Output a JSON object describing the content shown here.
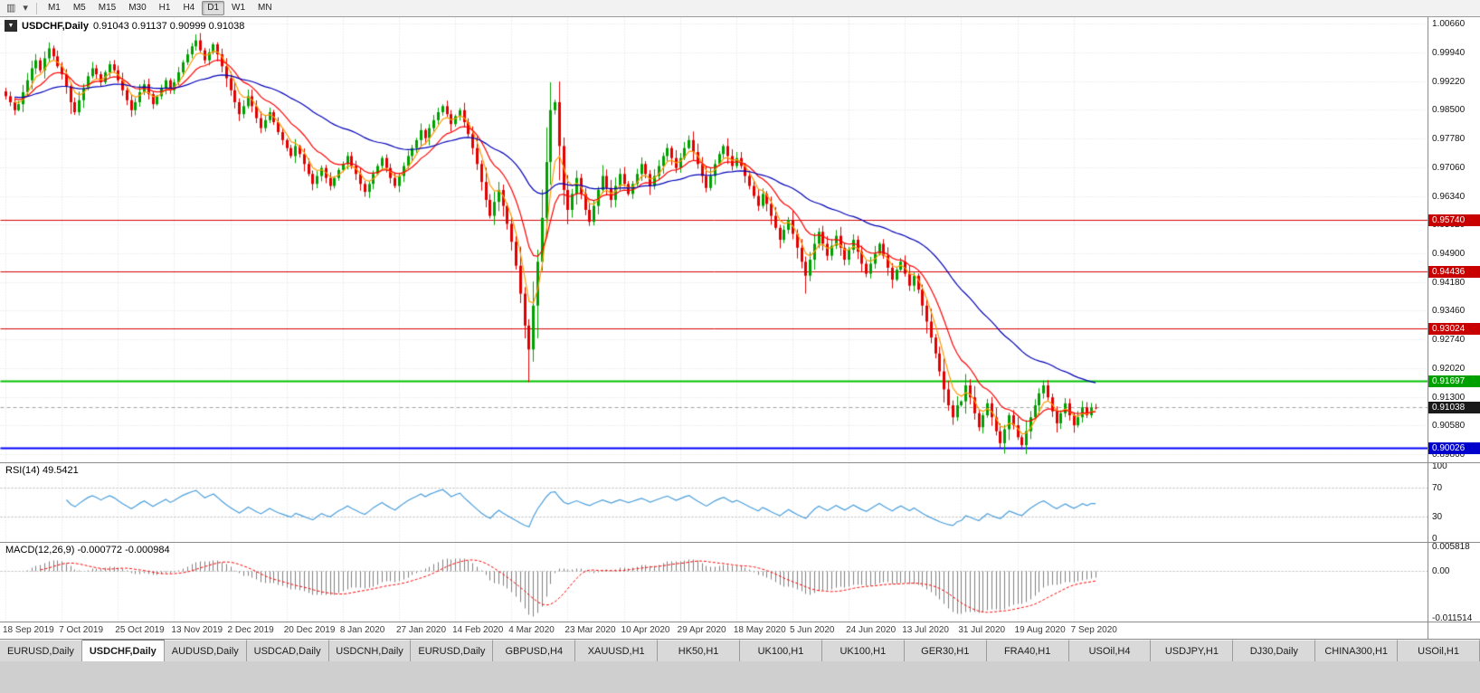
{
  "toolbar": {
    "icons": {
      "chart_tool": "▥",
      "dropdown": "▾"
    },
    "timeframes": [
      "M1",
      "M5",
      "M15",
      "M30",
      "H1",
      "H4",
      "D1",
      "W1",
      "MN"
    ],
    "active_timeframe": "D1"
  },
  "chart": {
    "menu_icon": "▼",
    "title": "USDCHF,Daily",
    "ohlc": "0.91043 0.91137 0.90999 0.91038"
  },
  "rsi": {
    "label": "RSI(14) 49.5421"
  },
  "macd": {
    "label": "MACD(12,26,9) -0.000772 -0.000984"
  },
  "tabs": {
    "active_index": 1,
    "items": [
      "EURUSD,Daily",
      "USDCHF,Daily",
      "AUDUSD,Daily",
      "USDCAD,Daily",
      "USDCNH,Daily",
      "EURUSD,Daily",
      "GBPUSD,H4",
      "XAUUSD,H1",
      "HK50,H1",
      "UK100,H1",
      "UK100,H1",
      "GER30,H1",
      "FRA40,H1",
      "USOil,H4",
      "USDJPY,H1",
      "DJ30,Daily",
      "CHINA300,H1",
      "USOil,H1"
    ]
  },
  "chart_data": {
    "type": "candlestick",
    "symbol": "USDCHF",
    "timeframe": "Daily",
    "current": {
      "open": 0.91043,
      "high": 0.91137,
      "low": 0.90999,
      "close": 0.91038
    },
    "y_axis": {
      "min": 0.8966,
      "max": 1.0082,
      "tick_labels": [
        "1.00660",
        "0.99940",
        "0.99220",
        "0.98500",
        "0.97780",
        "0.97060",
        "0.96340",
        "0.95620",
        "0.94900",
        "0.94180",
        "0.93460",
        "0.92740",
        "0.92020",
        "0.91300",
        "0.90580",
        "0.89860"
      ]
    },
    "x_labels": [
      "18 Sep 2019",
      "7 Oct 2019",
      "25 Oct 2019",
      "13 Nov 2019",
      "2 Dec 2019",
      "20 Dec 2019",
      "8 Jan 2020",
      "27 Jan 2020",
      "14 Feb 2020",
      "4 Mar 2020",
      "23 Mar 2020",
      "10 Apr 2020",
      "29 Apr 2020",
      "18 May 2020",
      "5 Jun 2020",
      "24 Jun 2020",
      "13 Jul 2020",
      "31 Jul 2020",
      "19 Aug 2020",
      "7 Sep 2020"
    ],
    "closes": [
      0.9885,
      0.987,
      0.985,
      0.9865,
      0.9895,
      0.9925,
      0.9955,
      0.9975,
      0.995,
      0.998,
      1.0005,
      0.9985,
      0.996,
      0.994,
      0.991,
      0.987,
      0.9845,
      0.9875,
      0.9905,
      0.9935,
      0.9955,
      0.994,
      0.992,
      0.9945,
      0.9965,
      0.995,
      0.9925,
      0.99,
      0.9875,
      0.985,
      0.987,
      0.9895,
      0.9915,
      0.989,
      0.9865,
      0.9885,
      0.9905,
      0.9925,
      0.99,
      0.992,
      0.9945,
      0.997,
      0.999,
      1.001,
      1.0025,
      1.0,
      0.9975,
      0.9995,
      1.0015,
      0.999,
      0.996,
      0.993,
      0.99,
      0.987,
      0.984,
      0.986,
      0.9885,
      0.986,
      0.983,
      0.9805,
      0.9825,
      0.9845,
      0.982,
      0.9795,
      0.9775,
      0.9755,
      0.9735,
      0.976,
      0.974,
      0.9715,
      0.969,
      0.9665,
      0.9685,
      0.9705,
      0.968,
      0.966,
      0.968,
      0.97,
      0.9715,
      0.9735,
      0.971,
      0.969,
      0.9665,
      0.9645,
      0.9665,
      0.969,
      0.971,
      0.973,
      0.9705,
      0.968,
      0.966,
      0.9685,
      0.971,
      0.9735,
      0.9755,
      0.9775,
      0.98,
      0.978,
      0.9805,
      0.9825,
      0.9845,
      0.986,
      0.984,
      0.9815,
      0.9835,
      0.985,
      0.982,
      0.979,
      0.9755,
      0.9715,
      0.967,
      0.9625,
      0.9585,
      0.962,
      0.965,
      0.961,
      0.9565,
      0.952,
      0.946,
      0.939,
      0.931,
      0.925,
      0.936,
      0.947,
      0.958,
      0.972,
      0.985,
      0.987,
      0.976,
      0.965,
      0.96,
      0.964,
      0.968,
      0.964,
      0.96,
      0.957,
      0.961,
      0.965,
      0.9685,
      0.9655,
      0.9625,
      0.966,
      0.969,
      0.9665,
      0.964,
      0.9665,
      0.969,
      0.9715,
      0.969,
      0.966,
      0.9685,
      0.971,
      0.9735,
      0.9755,
      0.973,
      0.9705,
      0.973,
      0.9755,
      0.9775,
      0.9745,
      0.9715,
      0.9685,
      0.9655,
      0.9685,
      0.9715,
      0.974,
      0.976,
      0.9735,
      0.971,
      0.973,
      0.971,
      0.9685,
      0.966,
      0.9635,
      0.961,
      0.964,
      0.9615,
      0.9585,
      0.9555,
      0.9525,
      0.955,
      0.9575,
      0.954,
      0.9505,
      0.947,
      0.9435,
      0.9475,
      0.9515,
      0.9545,
      0.9515,
      0.9485,
      0.951,
      0.9535,
      0.9505,
      0.9475,
      0.95,
      0.9525,
      0.9495,
      0.9465,
      0.944,
      0.9465,
      0.949,
      0.9515,
      0.9485,
      0.9455,
      0.9425,
      0.945,
      0.947,
      0.944,
      0.941,
      0.9435,
      0.94,
      0.936,
      0.932,
      0.928,
      0.924,
      0.9195,
      0.915,
      0.911,
      0.908,
      0.911,
      0.912,
      0.916,
      0.913,
      0.909,
      0.9055,
      0.9085,
      0.9115,
      0.908,
      0.9045,
      0.9015,
      0.905,
      0.9085,
      0.906,
      0.903,
      0.901,
      0.9045,
      0.908,
      0.911,
      0.914,
      0.916,
      0.913,
      0.9095,
      0.9065,
      0.909,
      0.9115,
      0.9085,
      0.906,
      0.908,
      0.9105,
      0.9085,
      0.91043,
      0.91038
    ],
    "wick_high_overrides": {
      "10": 1.002,
      "44": 1.004,
      "126": 0.992,
      "240": 0.9172,
      "252": 0.91137
    },
    "wick_low_overrides": {
      "121": 0.9168,
      "185": 0.939,
      "230": 0.9003,
      "235": 0.8999,
      "252": 0.90999
    },
    "overlays": {
      "horizontal_lines": [
        {
          "price": 0.9574,
          "label": "0.95740",
          "color": "#D60000",
          "tag_bg": "#C80000",
          "width": 1,
          "role": "resistance"
        },
        {
          "price": 0.94436,
          "label": "0.94436",
          "color": "#D60000",
          "tag_bg": "#C80000",
          "width": 1,
          "role": "resistance"
        },
        {
          "price": 0.93024,
          "label": "0.93024",
          "color": "#D60000",
          "tag_bg": "#C80000",
          "width": 1,
          "role": "resistance"
        },
        {
          "price": 0.91697,
          "label": "0.91697",
          "color": "#00C000",
          "tag_bg": "#00A000",
          "width": 2,
          "role": "resistance"
        },
        {
          "price": 0.90026,
          "label": "0.90026",
          "color": "#0000FF",
          "tag_bg": "#0000CC",
          "width": 2,
          "role": "support"
        }
      ],
      "current_price_tag": {
        "label": "0.91038",
        "tag_bg": "#1a1a1a",
        "line_color": "#a0a0a0"
      },
      "moving_averages": [
        {
          "period": 5,
          "method": "ema",
          "color": "#FF9900"
        },
        {
          "period": 13,
          "method": "ema",
          "color": "#FF0000"
        },
        {
          "period": 45,
          "method": "ema",
          "color": "#0000B8"
        }
      ]
    },
    "indicators": [
      {
        "name": "RSI",
        "period": 14,
        "current": 49.5421,
        "color": "#4A9EDC",
        "levels": [
          70,
          30
        ],
        "scale": [
          0,
          100
        ],
        "axis_labels": [
          "100",
          "70",
          "30",
          "0"
        ],
        "axis_values": [
          100,
          70,
          30,
          0
        ]
      },
      {
        "name": "MACD",
        "fast": 12,
        "slow": 26,
        "signal": 9,
        "current_macd": -0.000772,
        "current_signal": -0.000984,
        "histogram_color": "#7f7f7f",
        "signal_color": "#FF0000",
        "axis_labels": [
          "0.005818",
          "0.00",
          "-0.011514"
        ],
        "axis_values": [
          0.005818,
          0,
          -0.011514
        ]
      }
    ]
  }
}
